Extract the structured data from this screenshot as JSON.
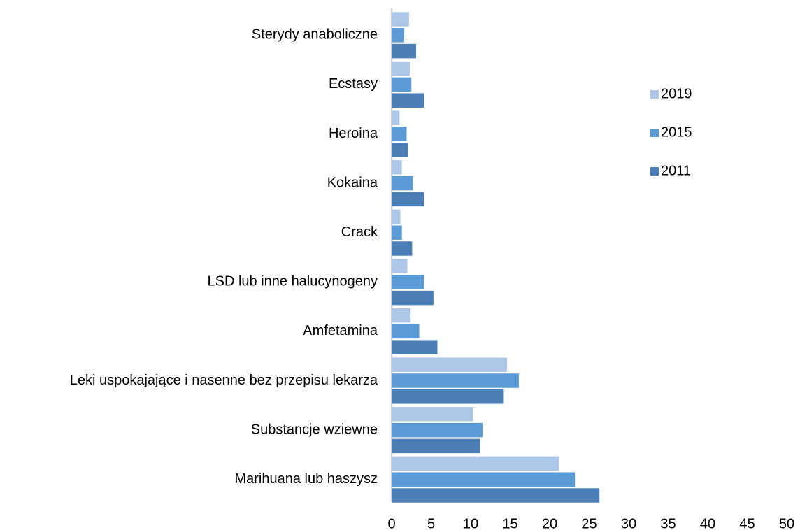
{
  "chart_data": {
    "type": "bar",
    "orientation": "horizontal",
    "categories": [
      "Sterydy anaboliczne",
      "Ecstasy",
      "Heroina",
      "Kokaina",
      "Crack",
      "LSD lub inne halucynogeny",
      "Amfetamina",
      "Leki uspokajające i nasenne bez przepisu lekarza",
      "Substancje wziewne",
      "Marihuana lub haszysz"
    ],
    "series": [
      {
        "name": "2019",
        "color": "#aec6e8",
        "values": [
          2.2,
          2.3,
          1.0,
          1.3,
          1.1,
          2.0,
          2.4,
          14.6,
          10.3,
          21.2
        ]
      },
      {
        "name": "2015",
        "color": "#5b9bd5",
        "values": [
          1.6,
          2.5,
          1.9,
          2.7,
          1.3,
          4.1,
          3.5,
          16.1,
          11.5,
          23.2
        ]
      },
      {
        "name": "2011",
        "color": "#4a7eb4",
        "values": [
          3.1,
          4.1,
          2.1,
          4.1,
          2.6,
          5.3,
          5.8,
          14.2,
          11.2,
          26.3
        ]
      }
    ],
    "xlim": [
      0,
      50
    ],
    "xticks": [
      0,
      5,
      10,
      15,
      20,
      25,
      30,
      35,
      40,
      45,
      50
    ],
    "grid": false,
    "legend": "right"
  }
}
